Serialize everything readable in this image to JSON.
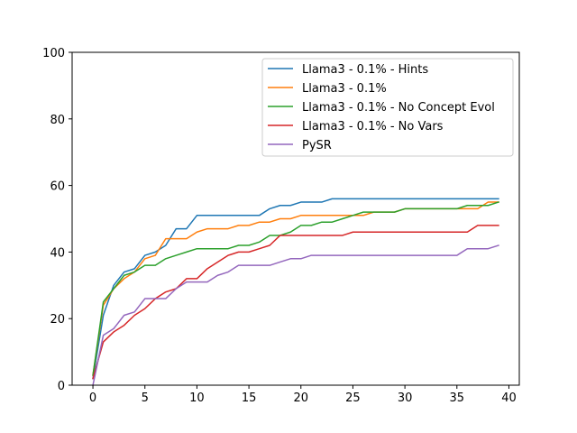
{
  "chart_data": {
    "type": "line",
    "title": "",
    "xlabel": "",
    "ylabel": "",
    "xlim": [
      -2,
      41
    ],
    "ylim": [
      0,
      100
    ],
    "xticks": [
      0,
      5,
      10,
      15,
      20,
      25,
      30,
      35,
      40
    ],
    "yticks": [
      0,
      20,
      40,
      60,
      80,
      100
    ],
    "grid": false,
    "legend_position": "top-right",
    "x": [
      0,
      1,
      2,
      3,
      4,
      5,
      6,
      7,
      8,
      9,
      10,
      11,
      12,
      13,
      14,
      15,
      16,
      17,
      18,
      19,
      20,
      21,
      22,
      23,
      24,
      25,
      26,
      27,
      28,
      29,
      30,
      31,
      32,
      33,
      34,
      35,
      36,
      37,
      38,
      39
    ],
    "series": [
      {
        "name": "Llama3 - 0.1% - Hints",
        "color": "#1f77b4",
        "values": [
          2,
          21,
          30,
          34,
          35,
          39,
          40,
          42,
          47,
          47,
          51,
          51,
          51,
          51,
          51,
          51,
          51,
          53,
          54,
          54,
          55,
          55,
          55,
          56,
          56,
          56,
          56,
          56,
          56,
          56,
          56,
          56,
          56,
          56,
          56,
          56,
          56,
          56,
          56,
          56
        ]
      },
      {
        "name": "Llama3 - 0.1%",
        "color": "#ff7f0e",
        "values": [
          3,
          24,
          29,
          32,
          34,
          38,
          39,
          44,
          44,
          44,
          46,
          47,
          47,
          47,
          48,
          48,
          49,
          49,
          50,
          50,
          51,
          51,
          51,
          51,
          51,
          51,
          51,
          52,
          52,
          52,
          53,
          53,
          53,
          53,
          53,
          53,
          53,
          53,
          55,
          55
        ]
      },
      {
        "name": "Llama3 - 0.1% - No Concept Evol",
        "color": "#2ca02c",
        "values": [
          3,
          25,
          29,
          33,
          34,
          36,
          36,
          38,
          39,
          40,
          41,
          41,
          41,
          41,
          42,
          42,
          43,
          45,
          45,
          46,
          48,
          48,
          49,
          49,
          50,
          51,
          52,
          52,
          52,
          52,
          53,
          53,
          53,
          53,
          53,
          53,
          54,
          54,
          54,
          55
        ]
      },
      {
        "name": "Llama3 - 0.1% - No Vars",
        "color": "#d62728",
        "values": [
          2,
          13,
          16,
          18,
          21,
          23,
          26,
          28,
          29,
          32,
          32,
          35,
          37,
          39,
          40,
          40,
          41,
          42,
          45,
          45,
          45,
          45,
          45,
          45,
          45,
          46,
          46,
          46,
          46,
          46,
          46,
          46,
          46,
          46,
          46,
          46,
          46,
          48,
          48,
          48
        ]
      },
      {
        "name": "PySR",
        "color": "#9467bd",
        "values": [
          0,
          15,
          17,
          21,
          22,
          26,
          26,
          26,
          29,
          31,
          31,
          31,
          33,
          34,
          36,
          36,
          36,
          36,
          37,
          38,
          38,
          39,
          39,
          39,
          39,
          39,
          39,
          39,
          39,
          39,
          39,
          39,
          39,
          39,
          39,
          39,
          41,
          41,
          41,
          42
        ]
      }
    ]
  }
}
